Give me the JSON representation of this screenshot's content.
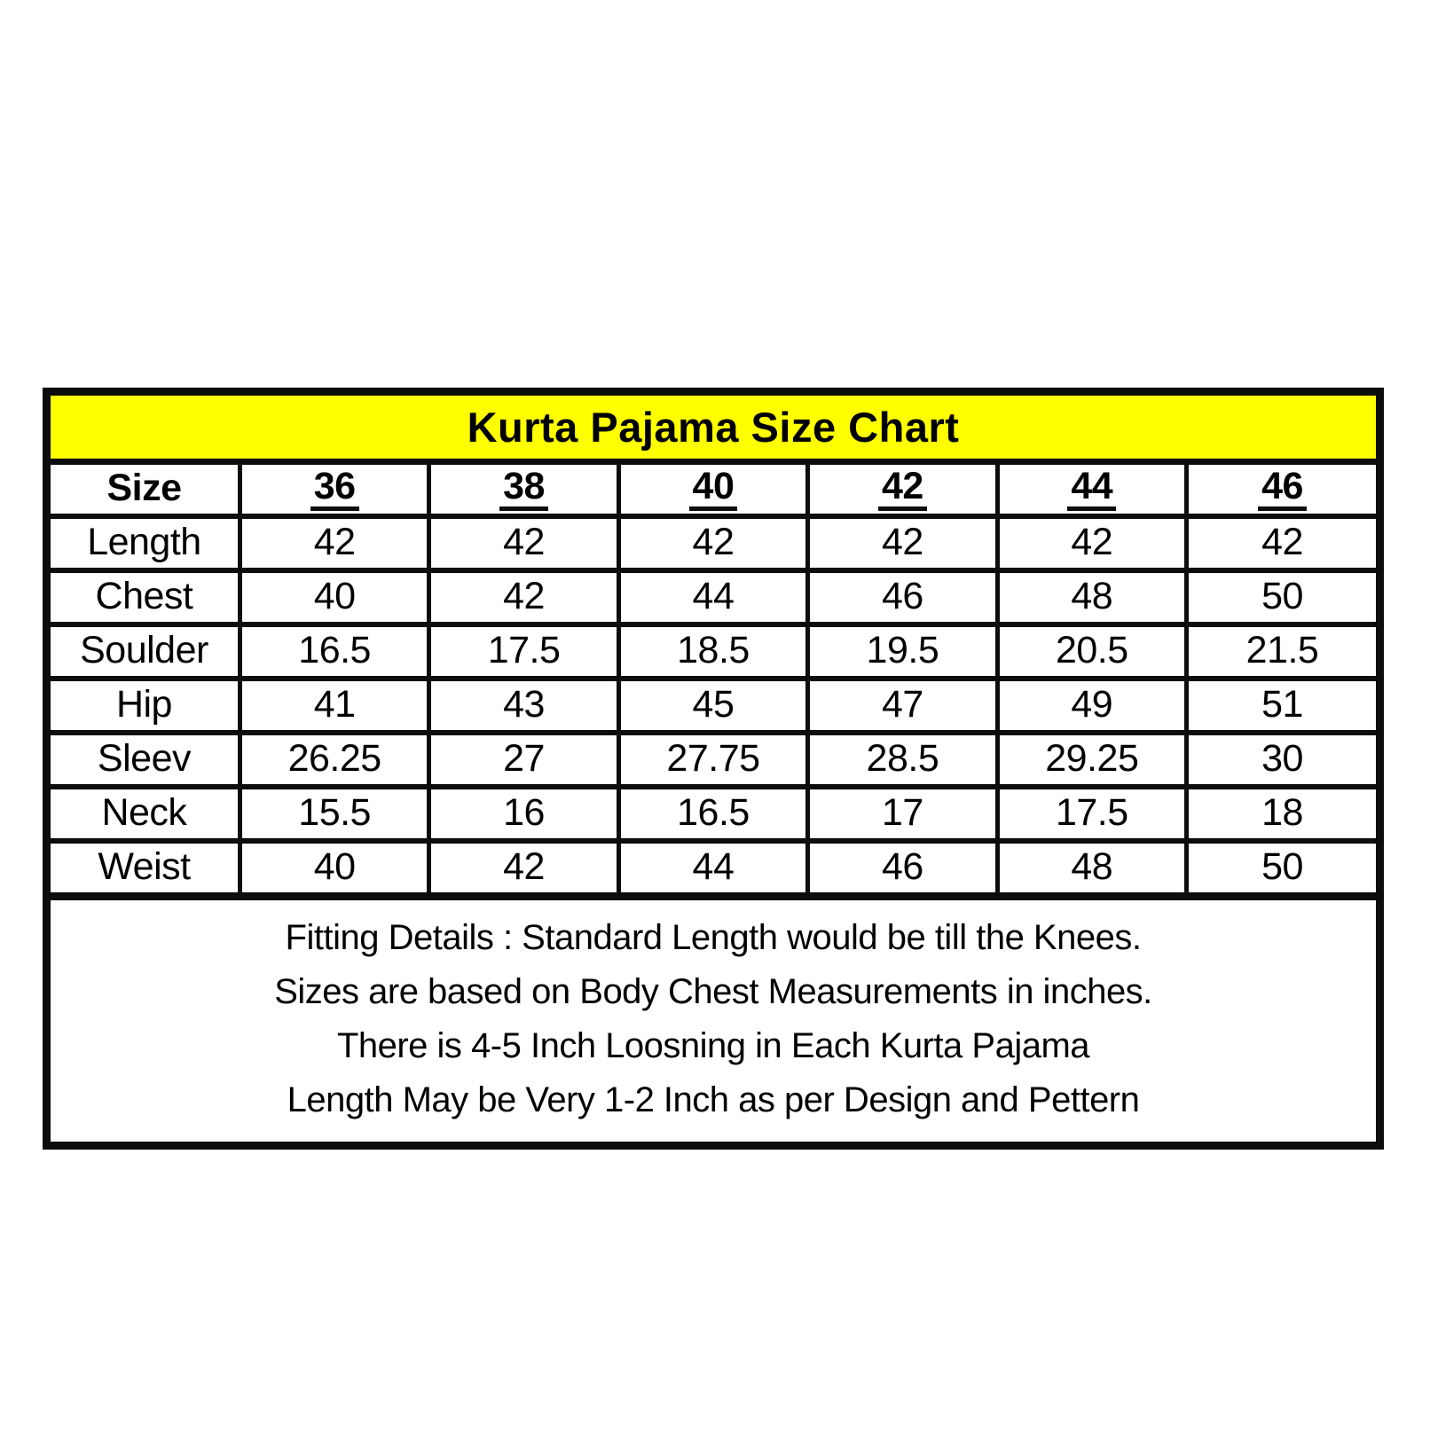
{
  "title": "Kurta Pajama Size Chart",
  "colors": {
    "title_background": "#FFFF00",
    "border": "#0D0D0D",
    "text": "#000000",
    "page_background": "#FFFFFF"
  },
  "table": {
    "header": [
      "Size",
      "36",
      "38",
      "40",
      "42",
      "44",
      "46"
    ],
    "rows": [
      {
        "label": "Length",
        "values": [
          "42",
          "42",
          "42",
          "42",
          "42",
          "42"
        ]
      },
      {
        "label": "Chest",
        "values": [
          "40",
          "42",
          "44",
          "46",
          "48",
          "50"
        ]
      },
      {
        "label": "Soulder",
        "values": [
          "16.5",
          "17.5",
          "18.5",
          "19.5",
          "20.5",
          "21.5"
        ]
      },
      {
        "label": "Hip",
        "values": [
          "41",
          "43",
          "45",
          "47",
          "49",
          "51"
        ]
      },
      {
        "label": "Sleev",
        "values": [
          "26.25",
          "27",
          "27.75",
          "28.5",
          "29.25",
          "30"
        ]
      },
      {
        "label": "Neck",
        "values": [
          "15.5",
          "16",
          "16.5",
          "17",
          "17.5",
          "18"
        ]
      },
      {
        "label": "Weist",
        "values": [
          "40",
          "42",
          "44",
          "46",
          "48",
          "50"
        ]
      }
    ],
    "notes": [
      "Fitting Details : Standard Length would be till the Knees.",
      "Sizes are based on Body Chest Measurements in inches.",
      "There is 4-5 Inch Loosning in Each Kurta Pajama",
      "Length May be Very 1-2 Inch as per Design and Pettern"
    ]
  }
}
